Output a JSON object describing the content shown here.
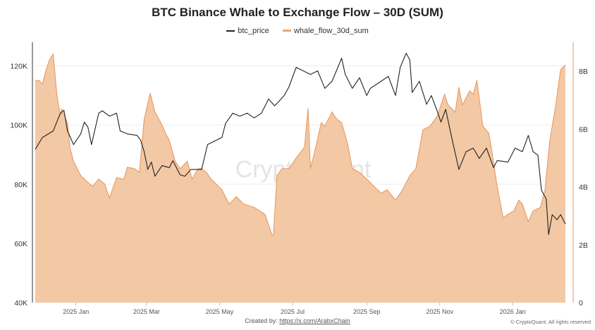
{
  "chart_data": {
    "type": "line",
    "title": "BTC Binance Whale to Exchange Flow – 30D (SUM)",
    "legend_position": "top-center",
    "grid": true,
    "watermark": "CryptoQuant",
    "x_range": [
      "2024-11-28",
      "2026-02-14"
    ],
    "x_ticks": [
      {
        "date": "2025-01-01",
        "label": "2025 Jan"
      },
      {
        "date": "2025-03-01",
        "label": "2025 Mar"
      },
      {
        "date": "2025-05-01",
        "label": "2025 May"
      },
      {
        "date": "2025-07-01",
        "label": "2025 Jul"
      },
      {
        "date": "2025-09-01",
        "label": "2025 Sep"
      },
      {
        "date": "2025-11-01",
        "label": "2025 Nov"
      },
      {
        "date": "2026-01-01",
        "label": "2026 Jan"
      }
    ],
    "y_left": {
      "lim": [
        40000,
        128000
      ],
      "ticks": [
        {
          "v": 40000,
          "label": "40K"
        },
        {
          "v": 60000,
          "label": "60K"
        },
        {
          "v": 80000,
          "label": "80K"
        },
        {
          "v": 100000,
          "label": "100K"
        },
        {
          "v": 120000,
          "label": "120K"
        }
      ]
    },
    "y_right": {
      "lim": [
        0,
        9000000000
      ],
      "ticks": [
        {
          "v": 0,
          "label": "0"
        },
        {
          "v": 2000000000,
          "label": "2B"
        },
        {
          "v": 4000000000,
          "label": "4B"
        },
        {
          "v": 6000000000,
          "label": "6B"
        },
        {
          "v": 8000000000,
          "label": "8B"
        }
      ]
    },
    "series": [
      {
        "name": "btc_price",
        "type": "line",
        "axis": "left",
        "color": "#222222",
        "x": [
          "2024-11-28",
          "2024-12-04",
          "2024-12-13",
          "2024-12-19",
          "2024-12-22",
          "2024-12-25",
          "2024-12-30",
          "2025-01-05",
          "2025-01-08",
          "2025-01-11",
          "2025-01-14",
          "2025-01-20",
          "2025-01-23",
          "2025-01-29",
          "2025-02-04",
          "2025-02-07",
          "2025-02-13",
          "2025-02-21",
          "2025-02-24",
          "2025-02-27",
          "2025-03-02",
          "2025-03-05",
          "2025-03-08",
          "2025-03-14",
          "2025-03-20",
          "2025-03-23",
          "2025-03-29",
          "2025-04-02",
          "2025-04-07",
          "2025-04-16",
          "2025-04-21",
          "2025-04-27",
          "2025-05-03",
          "2025-05-06",
          "2025-05-12",
          "2025-05-18",
          "2025-05-24",
          "2025-05-30",
          "2025-06-05",
          "2025-06-11",
          "2025-06-16",
          "2025-06-19",
          "2025-06-24",
          "2025-06-28",
          "2025-07-04",
          "2025-07-10",
          "2025-07-16",
          "2025-07-22",
          "2025-07-28",
          "2025-08-03",
          "2025-08-11",
          "2025-08-14",
          "2025-08-20",
          "2025-08-26",
          "2025-09-01",
          "2025-09-04",
          "2025-09-13",
          "2025-09-19",
          "2025-09-25",
          "2025-09-29",
          "2025-10-04",
          "2025-10-07",
          "2025-10-09",
          "2025-10-15",
          "2025-10-21",
          "2025-10-25",
          "2025-10-30",
          "2025-11-02",
          "2025-11-06",
          "2025-11-11",
          "2025-11-17",
          "2025-11-23",
          "2025-11-29",
          "2025-12-04",
          "2025-12-10",
          "2025-12-16",
          "2025-12-19",
          "2025-12-28",
          "2026-01-03",
          "2026-01-09",
          "2026-01-14",
          "2026-01-18",
          "2026-01-22",
          "2026-01-25",
          "2026-01-29",
          "2026-01-31",
          "2026-02-03",
          "2026-02-07",
          "2026-02-10",
          "2026-02-14"
        ],
        "y": [
          91800,
          95800,
          98000,
          104000,
          105000,
          98000,
          93400,
          97000,
          101000,
          99300,
          93400,
          104000,
          104800,
          103000,
          104000,
          98000,
          97000,
          96500,
          95000,
          91000,
          85000,
          87500,
          82700,
          86300,
          85600,
          88000,
          83200,
          82700,
          85000,
          85000,
          93400,
          94600,
          95800,
          100500,
          104000,
          103000,
          104000,
          102400,
          104000,
          108800,
          106500,
          107700,
          110000,
          112900,
          119500,
          118300,
          117100,
          118300,
          112400,
          114800,
          122600,
          117100,
          112400,
          116000,
          110000,
          112400,
          114800,
          116500,
          110000,
          119500,
          124300,
          122000,
          111000,
          114800,
          107000,
          110000,
          104600,
          101000,
          105300,
          95800,
          85000,
          91000,
          92200,
          88700,
          92200,
          85600,
          88000,
          87500,
          92200,
          91000,
          96500,
          91000,
          89800,
          78000,
          75000,
          63000,
          69700,
          68000,
          69700,
          66600
        ]
      },
      {
        "name": "whale_flow_30d_sum",
        "type": "area",
        "axis": "right",
        "color": "#e8955a",
        "fill": "#f2c8a5",
        "x": [
          "2024-11-28",
          "2024-12-01",
          "2024-12-04",
          "2024-12-07",
          "2024-12-10",
          "2024-12-13",
          "2024-12-16",
          "2024-12-19",
          "2024-12-20",
          "2024-12-25",
          "2024-12-27",
          "2024-12-30",
          "2025-01-05",
          "2025-01-11",
          "2025-01-15",
          "2025-01-20",
          "2025-01-25",
          "2025-01-29",
          "2025-02-04",
          "2025-02-10",
          "2025-02-13",
          "2025-02-19",
          "2025-02-23",
          "2025-02-27",
          "2025-03-04",
          "2025-03-08",
          "2025-03-13",
          "2025-03-17",
          "2025-03-20",
          "2025-03-25",
          "2025-03-29",
          "2025-04-04",
          "2025-04-08",
          "2025-04-13",
          "2025-04-16",
          "2025-04-20",
          "2025-04-24",
          "2025-05-03",
          "2025-05-09",
          "2025-05-15",
          "2025-05-21",
          "2025-05-30",
          "2025-06-08",
          "2025-06-14",
          "2025-06-15",
          "2025-06-18",
          "2025-06-22",
          "2025-06-28",
          "2025-07-04",
          "2025-07-11",
          "2025-07-14",
          "2025-07-16",
          "2025-07-19",
          "2025-07-25",
          "2025-07-28",
          "2025-08-03",
          "2025-08-07",
          "2025-08-11",
          "2025-08-16",
          "2025-08-20",
          "2025-08-26",
          "2025-09-01",
          "2025-09-07",
          "2025-09-13",
          "2025-09-18",
          "2025-09-25",
          "2025-10-01",
          "2025-10-07",
          "2025-10-12",
          "2025-10-18",
          "2025-10-24",
          "2025-10-30",
          "2025-11-05",
          "2025-11-08",
          "2025-11-14",
          "2025-11-17",
          "2025-11-20",
          "2025-11-26",
          "2025-11-29",
          "2025-12-02",
          "2025-12-04",
          "2025-12-07",
          "2025-12-12",
          "2025-12-14",
          "2025-12-19",
          "2025-12-24",
          "2025-12-28",
          "2026-01-02",
          "2026-01-06",
          "2026-01-09",
          "2026-01-14",
          "2026-01-18",
          "2026-01-24",
          "2026-01-28",
          "2026-02-01",
          "2026-02-06",
          "2026-02-10",
          "2026-02-14"
        ],
        "y": [
          7680000000.0,
          7680000000.0,
          7560000000.0,
          8050000000.0,
          8410000000.0,
          8590000000.0,
          7200000000.0,
          6460000000.0,
          6700000000.0,
          6200000000.0,
          5370000000.0,
          4880000000.0,
          4390000000.0,
          4150000000.0,
          4020000000.0,
          4270000000.0,
          4100000000.0,
          3610000000.0,
          4320000000.0,
          4270000000.0,
          4680000000.0,
          4630000000.0,
          4500000000.0,
          6340000000.0,
          7240000000.0,
          6590000000.0,
          6220000000.0,
          5850000000.0,
          5610000000.0,
          4880000000.0,
          4630000000.0,
          4880000000.0,
          4270000000.0,
          4630000000.0,
          4630000000.0,
          4500000000.0,
          4270000000.0,
          3900000000.0,
          3410000000.0,
          3660000000.0,
          3410000000.0,
          3290000000.0,
          3050000000.0,
          2320000000.0,
          2320000000.0,
          4390000000.0,
          4630000000.0,
          4630000000.0,
          5000000000.0,
          5370000000.0,
          6710000000.0,
          4630000000.0,
          5120000000.0,
          6220000000.0,
          6100000000.0,
          6590000000.0,
          6340000000.0,
          6220000000.0,
          5490000000.0,
          4630000000.0,
          4500000000.0,
          4270000000.0,
          4020000000.0,
          3780000000.0,
          3900000000.0,
          3540000000.0,
          3900000000.0,
          4390000000.0,
          4630000000.0,
          5980000000.0,
          6100000000.0,
          6460000000.0,
          7200000000.0,
          6830000000.0,
          6590000000.0,
          7440000000.0,
          6830000000.0,
          7320000000.0,
          7200000000.0,
          7680000000.0,
          7070000000.0,
          6100000000.0,
          5850000000.0,
          5370000000.0,
          4020000000.0,
          2930000000.0,
          3050000000.0,
          3170000000.0,
          3540000000.0,
          3410000000.0,
          2800000000.0,
          3170000000.0,
          3290000000.0,
          3900000000.0,
          5610000000.0,
          6830000000.0,
          8050000000.0,
          8220000000.0
        ]
      }
    ]
  },
  "footer": {
    "created_by_label": "Created by:",
    "created_by_link": "https://x.com/ArabxChain",
    "copyright": "© CryptoQuant. All rights reserved"
  }
}
